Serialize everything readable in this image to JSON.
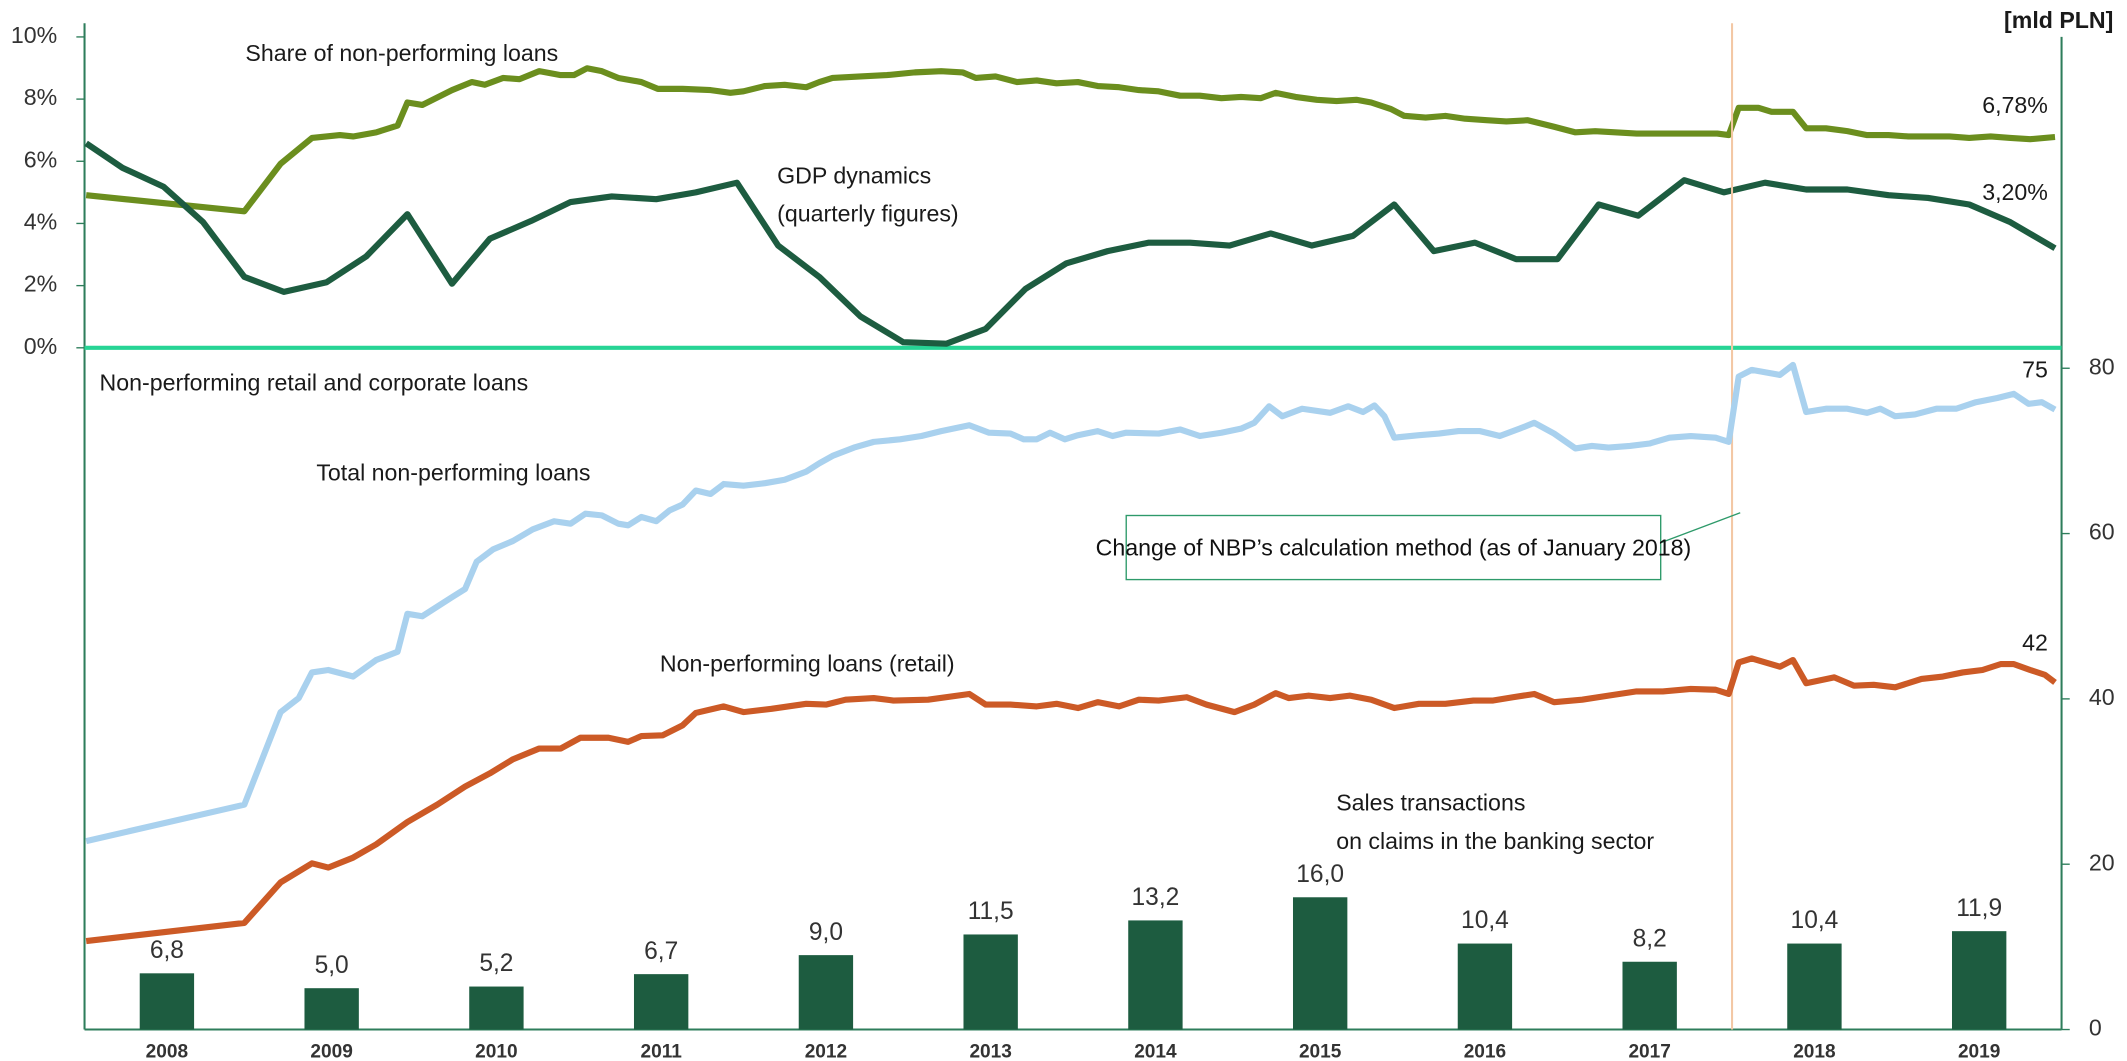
{
  "chart_data": [
    {
      "type": "line",
      "xlim": [
        2007.5,
        2019.5
      ],
      "ylim": [
        0,
        10
      ],
      "yticks": [
        {
          "value": 0,
          "label": "0%"
        },
        {
          "value": 2,
          "label": "2%"
        },
        {
          "value": 4,
          "label": "4%"
        },
        {
          "value": 6,
          "label": "6%"
        },
        {
          "value": 8,
          "label": "8%"
        },
        {
          "value": 10,
          "label": "10%"
        }
      ],
      "series": [
        {
          "name": "Share of non-performing loans",
          "color": "#6b8e1e",
          "end_label": "6,78%",
          "x": [
            2007.51,
            2008.47,
            2008.69,
            2008.88,
            2009.05,
            2009.13,
            2009.27,
            2009.4,
            2009.46,
            2009.55,
            2009.73,
            2009.85,
            2009.93,
            2010.04,
            2010.14,
            2010.26,
            2010.39,
            2010.47,
            2010.55,
            2010.64,
            2010.74,
            2010.88,
            2010.98,
            2011.13,
            2011.3,
            2011.42,
            2011.5,
            2011.63,
            2011.75,
            2011.88,
            2011.96,
            2012.04,
            2012.21,
            2012.37,
            2012.54,
            2012.7,
            2012.83,
            2012.91,
            2013.03,
            2013.16,
            2013.28,
            2013.4,
            2013.53,
            2013.65,
            2013.78,
            2013.9,
            2014.02,
            2014.15,
            2014.27,
            2014.4,
            2014.52,
            2014.64,
            2014.73,
            2014.85,
            2014.98,
            2015.1,
            2015.22,
            2015.31,
            2015.43,
            2015.51,
            2015.64,
            2015.76,
            2015.88,
            2016.01,
            2016.13,
            2016.26,
            2016.42,
            2016.55,
            2016.67,
            2016.79,
            2016.92,
            2017.04,
            2017.17,
            2017.29,
            2017.41,
            2017.48,
            2017.54,
            2017.66,
            2017.74,
            2017.87,
            2017.95,
            2018.07,
            2018.2,
            2018.32,
            2018.45,
            2018.57,
            2018.69,
            2018.82,
            2018.94,
            2019.07,
            2019.19,
            2019.31,
            2019.46
          ],
          "values": [
            4.91,
            4.39,
            5.92,
            6.75,
            6.84,
            6.8,
            6.93,
            7.15,
            7.89,
            7.81,
            8.29,
            8.55,
            8.46,
            8.68,
            8.64,
            8.9,
            8.77,
            8.77,
            8.99,
            8.9,
            8.68,
            8.55,
            8.33,
            8.33,
            8.29,
            8.2,
            8.25,
            8.42,
            8.46,
            8.38,
            8.55,
            8.68,
            8.73,
            8.77,
            8.86,
            8.9,
            8.86,
            8.68,
            8.73,
            8.55,
            8.6,
            8.51,
            8.55,
            8.42,
            8.38,
            8.29,
            8.25,
            8.11,
            8.11,
            8.03,
            8.07,
            8.03,
            8.2,
            8.07,
            7.98,
            7.94,
            7.98,
            7.89,
            7.68,
            7.46,
            7.41,
            7.46,
            7.37,
            7.32,
            7.28,
            7.32,
            7.11,
            6.93,
            6.97,
            6.93,
            6.89,
            6.89,
            6.89,
            6.89,
            6.89,
            6.84,
            7.72,
            7.72,
            7.59,
            7.59,
            7.06,
            7.06,
            6.97,
            6.84,
            6.84,
            6.8,
            6.8,
            6.8,
            6.75,
            6.8,
            6.75,
            6.71,
            6.78
          ]
        },
        {
          "name_lines": [
            "GDP dynamics",
            "(quarterly figures)"
          ],
          "color": "#1d5c40",
          "end_label": "3,20%",
          "x": [
            2007.51,
            2007.73,
            2007.98,
            2008.22,
            2008.47,
            2008.71,
            2008.97,
            2009.21,
            2009.46,
            2009.73,
            2009.96,
            2010.21,
            2010.45,
            2010.7,
            2010.97,
            2011.21,
            2011.46,
            2011.71,
            2011.96,
            2012.21,
            2012.47,
            2012.73,
            2012.97,
            2013.21,
            2013.46,
            2013.71,
            2013.96,
            2014.21,
            2014.45,
            2014.7,
            2014.95,
            2015.2,
            2015.45,
            2015.69,
            2015.94,
            2016.19,
            2016.44,
            2016.69,
            2016.93,
            2017.21,
            2017.45,
            2017.7,
            2017.95,
            2018.2,
            2018.45,
            2018.69,
            2018.94,
            2019.19,
            2019.46
          ],
          "values": [
            6.58,
            5.79,
            5.18,
            4.04,
            2.28,
            1.8,
            2.11,
            2.94,
            4.3,
            2.06,
            3.51,
            4.08,
            4.69,
            4.87,
            4.78,
            5.0,
            5.31,
            3.29,
            2.28,
            1.01,
            0.18,
            0.13,
            0.61,
            1.89,
            2.72,
            3.11,
            3.38,
            3.38,
            3.29,
            3.68,
            3.29,
            3.6,
            4.61,
            3.11,
            3.38,
            2.85,
            2.85,
            4.61,
            4.25,
            5.39,
            5.0,
            5.31,
            5.09,
            5.09,
            4.91,
            4.82,
            4.61,
            4.04,
            3.2
          ]
        }
      ]
    },
    {
      "type": "combo",
      "subtitle": "Non-performing retail and corporate loans",
      "y_label": "[mld PLN]",
      "xlim": [
        2007.5,
        2019.5
      ],
      "xticks": [
        2008,
        2009,
        2010,
        2011,
        2012,
        2013,
        2014,
        2015,
        2016,
        2017,
        2018,
        2019
      ],
      "ylim": [
        0,
        80
      ],
      "yticks": [
        0,
        20,
        40,
        60,
        80
      ],
      "bars": {
        "name_lines": [
          "Sales transactions",
          "on claims in the banking sector"
        ],
        "color": "#1d5c40",
        "x": [
          2008,
          2009,
          2010,
          2011,
          2012,
          2013,
          2014,
          2015,
          2016,
          2017,
          2018,
          2019
        ],
        "values": [
          6.8,
          5.0,
          5.2,
          6.7,
          9.0,
          11.5,
          13.2,
          16.0,
          10.4,
          8.2,
          10.4,
          11.9
        ],
        "value_labels": [
          "6,8",
          "5,0",
          "5,2",
          "6,7",
          "9,0",
          "11,5",
          "13,2",
          "16,0",
          "10,4",
          "8,2",
          "10,4",
          "11,9"
        ]
      },
      "series": [
        {
          "name": "Total non-performing loans",
          "color": "#a9d1ee",
          "x": [
            2007.51,
            2008.47,
            2008.69,
            2008.8,
            2008.88,
            2008.98,
            2009.13,
            2009.27,
            2009.4,
            2009.46,
            2009.55,
            2009.73,
            2009.81,
            2009.88,
            2009.98,
            2010.1,
            2010.22,
            2010.35,
            2010.45,
            2010.54,
            2010.64,
            2010.74,
            2010.8,
            2010.88,
            2010.97,
            2011.05,
            2011.13,
            2011.21,
            2011.3,
            2011.38,
            2011.5,
            2011.63,
            2011.75,
            2011.88,
            2011.96,
            2012.04,
            2012.17,
            2012.29,
            2012.45,
            2012.58,
            2012.7,
            2012.87,
            2012.99,
            2013.12,
            2013.2,
            2013.28,
            2013.36,
            2013.45,
            2013.53,
            2013.65,
            2013.74,
            2013.82,
            2014.02,
            2014.15,
            2014.27,
            2014.4,
            2014.52,
            2014.6,
            2014.69,
            2014.77,
            2014.89,
            2015.06,
            2015.17,
            2015.26,
            2015.33,
            2015.39,
            2015.45,
            2015.6,
            2015.72,
            2015.84,
            2015.97,
            2016.09,
            2016.21,
            2016.3,
            2016.42,
            2016.55,
            2016.65,
            2016.75,
            2016.88,
            2017.0,
            2017.12,
            2017.25,
            2017.4,
            2017.48,
            2017.54,
            2017.62,
            2017.79,
            2017.87,
            2017.95,
            2018.07,
            2018.2,
            2018.32,
            2018.4,
            2018.49,
            2018.61,
            2018.74,
            2018.86,
            2018.98,
            2019.11,
            2019.21,
            2019.3,
            2019.38,
            2019.46
          ],
          "values": [
            22.8,
            27.2,
            38.4,
            40.1,
            43.2,
            43.5,
            42.7,
            44.7,
            45.7,
            50.3,
            50.0,
            52.3,
            53.3,
            56.6,
            58.1,
            59.1,
            60.5,
            61.5,
            61.2,
            62.4,
            62.2,
            61.2,
            61.0,
            62.0,
            61.5,
            62.8,
            63.5,
            65.2,
            64.8,
            66.0,
            65.8,
            66.1,
            66.5,
            67.5,
            68.5,
            69.4,
            70.4,
            71.1,
            71.4,
            71.8,
            72.4,
            73.1,
            72.2,
            72.1,
            71.4,
            71.4,
            72.2,
            71.4,
            71.9,
            72.4,
            71.8,
            72.2,
            72.1,
            72.6,
            71.8,
            72.2,
            72.7,
            73.4,
            75.4,
            74.2,
            75.1,
            74.6,
            75.4,
            74.7,
            75.5,
            74.2,
            71.6,
            71.9,
            72.1,
            72.4,
            72.4,
            71.8,
            72.7,
            73.4,
            72.1,
            70.3,
            70.6,
            70.4,
            70.6,
            70.9,
            71.6,
            71.8,
            71.6,
            71.1,
            79.0,
            79.8,
            79.2,
            80.4,
            74.7,
            75.1,
            75.1,
            74.6,
            75.1,
            74.2,
            74.4,
            75.1,
            75.1,
            75.9,
            76.4,
            76.9,
            75.7,
            75.9,
            75
          ]
        },
        {
          "name": "Non-performing loans (retail)",
          "color": "#cc5a26",
          "x": [
            2007.51,
            2008.47,
            2008.69,
            2008.88,
            2008.98,
            2009.13,
            2009.27,
            2009.46,
            2009.64,
            2009.81,
            2009.96,
            2010.1,
            2010.26,
            2010.39,
            2010.51,
            2010.68,
            2010.8,
            2010.88,
            2011.01,
            2011.13,
            2011.21,
            2011.38,
            2011.5,
            2011.67,
            2011.88,
            2012.0,
            2012.12,
            2012.29,
            2012.41,
            2012.62,
            2012.87,
            2012.97,
            2013.12,
            2013.28,
            2013.4,
            2013.53,
            2013.65,
            2013.78,
            2013.9,
            2014.02,
            2014.19,
            2014.31,
            2014.48,
            2014.6,
            2014.73,
            2014.81,
            2014.93,
            2015.06,
            2015.18,
            2015.31,
            2015.45,
            2015.6,
            2015.76,
            2015.93,
            2016.05,
            2016.17,
            2016.3,
            2016.42,
            2016.59,
            2016.75,
            2016.92,
            2017.08,
            2017.25,
            2017.4,
            2017.48,
            2017.54,
            2017.62,
            2017.79,
            2017.87,
            2017.95,
            2018.12,
            2018.24,
            2018.36,
            2018.49,
            2018.65,
            2018.78,
            2018.9,
            2019.02,
            2019.13,
            2019.21,
            2019.31,
            2019.4,
            2019.46
          ],
          "values": [
            10.7,
            12.9,
            17.8,
            20.1,
            19.6,
            20.8,
            22.4,
            25.1,
            27.2,
            29.4,
            31.0,
            32.7,
            34.0,
            34.0,
            35.3,
            35.3,
            34.8,
            35.5,
            35.6,
            36.8,
            38.3,
            39.1,
            38.4,
            38.8,
            39.4,
            39.3,
            39.9,
            40.1,
            39.8,
            39.9,
            40.6,
            39.3,
            39.3,
            39.1,
            39.4,
            38.9,
            39.6,
            39.1,
            39.9,
            39.8,
            40.2,
            39.3,
            38.4,
            39.3,
            40.7,
            40.1,
            40.4,
            40.1,
            40.4,
            39.9,
            38.9,
            39.4,
            39.4,
            39.8,
            39.8,
            40.2,
            40.6,
            39.6,
            39.9,
            40.4,
            40.9,
            40.9,
            41.2,
            41.1,
            40.6,
            44.4,
            44.9,
            43.9,
            44.7,
            41.9,
            42.6,
            41.6,
            41.7,
            41.4,
            42.4,
            42.7,
            43.2,
            43.5,
            44.2,
            44.2,
            43.5,
            42.9,
            42
          ]
        }
      ],
      "events": [
        {
          "x": 2017.5,
          "label": "Change of NBP’s calculation method (as of January 2018)"
        }
      ]
    }
  ]
}
